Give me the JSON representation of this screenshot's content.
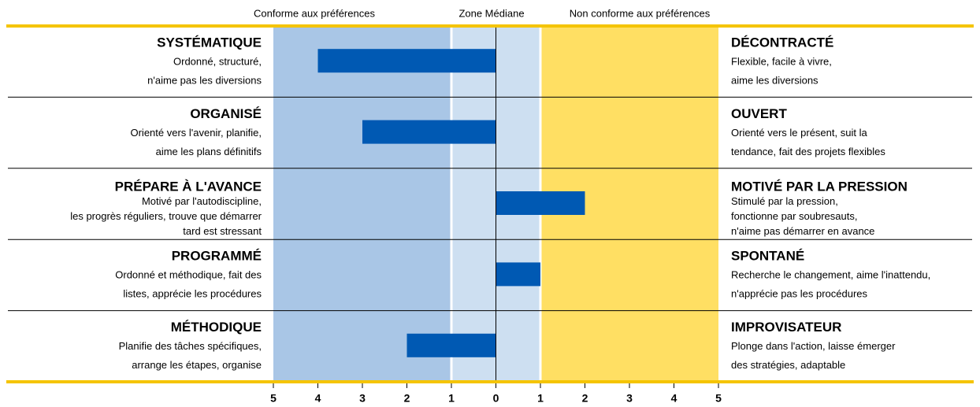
{
  "chart_data": {
    "type": "bar",
    "orientation": "horizontal",
    "color": "#0059b3",
    "xlim": [
      -5,
      5
    ],
    "xticks": [
      {
        "value": -5,
        "label": "5"
      },
      {
        "value": -4,
        "label": "4"
      },
      {
        "value": -3,
        "label": "3"
      },
      {
        "value": -2,
        "label": "2"
      },
      {
        "value": -1,
        "label": "1"
      },
      0,
      1,
      2,
      3,
      4,
      5
    ],
    "zones": [
      {
        "label": "Conforme aux préférences",
        "range": [
          -5,
          -1
        ],
        "color": "#a9c6e6"
      },
      {
        "label": "Zone Médiane",
        "range": [
          -1,
          1
        ],
        "color": "#cddff1"
      },
      {
        "label": "Non conforme aux préférences",
        "range": [
          1,
          5
        ],
        "color": "#ffdf63"
      }
    ],
    "rows": [
      {
        "left_title": "SYSTÉMATIQUE",
        "left_desc": [
          "Ordonné, structuré,",
          "n'aime pas les diversions"
        ],
        "right_title": "DÉCONTRACTÉ",
        "right_desc": [
          "Flexible, facile à vivre,",
          "aime les diversions"
        ]
      },
      {
        "left_title": "ORGANISÉ",
        "left_desc": [
          "Orienté vers l'avenir, planifie,",
          "aime les plans définitifs"
        ],
        "right_title": "OUVERT",
        "right_desc": [
          "Orienté vers le présent, suit la",
          "tendance, fait des projets flexibles"
        ]
      },
      {
        "left_title": "PRÉPARE À L'AVANCE",
        "left_desc": [
          "Motivé par l'autodiscipline,",
          "les progrès réguliers, trouve que démarrer",
          "tard est stressant"
        ],
        "right_title": "MOTIVÉ PAR LA PRESSION",
        "right_desc": [
          "Stimulé par la pression,",
          "fonctionne par soubresauts,",
          "n'aime pas démarrer en avance"
        ]
      },
      {
        "left_title": "PROGRAMMÉ",
        "left_desc": [
          "Ordonné et méthodique, fait des",
          "listes, apprécie les procédures"
        ],
        "right_title": "SPONTANÉ",
        "right_desc": [
          "Recherche le changement, aime l'inattendu,",
          "n'apprécie pas les procédures"
        ]
      },
      {
        "left_title": "MÉTHODIQUE",
        "left_desc": [
          "Planifie des tâches spécifiques,",
          "arrange les étapes, organise"
        ],
        "right_title": "IMPROVISATEUR",
        "right_desc": [
          "Plonge dans l'action, laisse émerger",
          "des stratégies, adaptable"
        ]
      }
    ],
    "values": [
      -4,
      -3,
      2,
      1,
      -2
    ]
  }
}
